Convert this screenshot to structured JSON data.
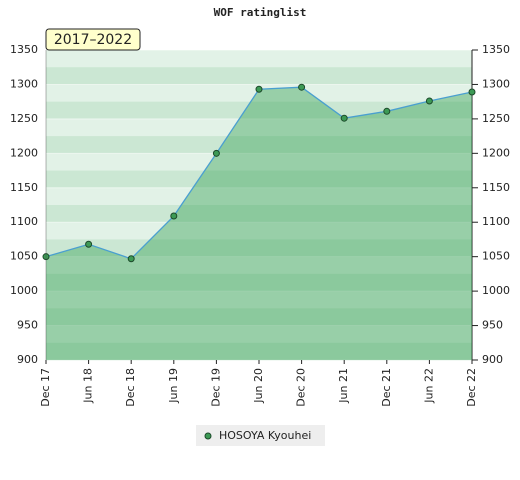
{
  "chart_data": {
    "type": "area",
    "title": "WOF ratinglist",
    "annotation": "2017–2022",
    "categories": [
      "Dec 17",
      "Jun 18",
      "Dec 18",
      "Jun 19",
      "Dec 19",
      "Jun 20",
      "Dec 20",
      "Jun 21",
      "Dec 21",
      "Jun 22",
      "Dec 22"
    ],
    "series": [
      {
        "name": "HOSOYA Kyouhei",
        "color": "#4a9fd0",
        "values": [
          1050,
          1068,
          1047,
          1109,
          1200,
          1293,
          1296,
          1251,
          1261,
          1276,
          1289
        ]
      }
    ],
    "ylim": [
      900,
      1350
    ],
    "yticks": [
      900,
      950,
      1000,
      1050,
      1100,
      1150,
      1200,
      1250,
      1300,
      1350
    ],
    "y2lim": [
      900,
      1350
    ],
    "y2ticks": [
      900,
      950,
      1000,
      1050,
      1100,
      1150,
      1200,
      1250,
      1300,
      1350
    ],
    "grid": true
  }
}
